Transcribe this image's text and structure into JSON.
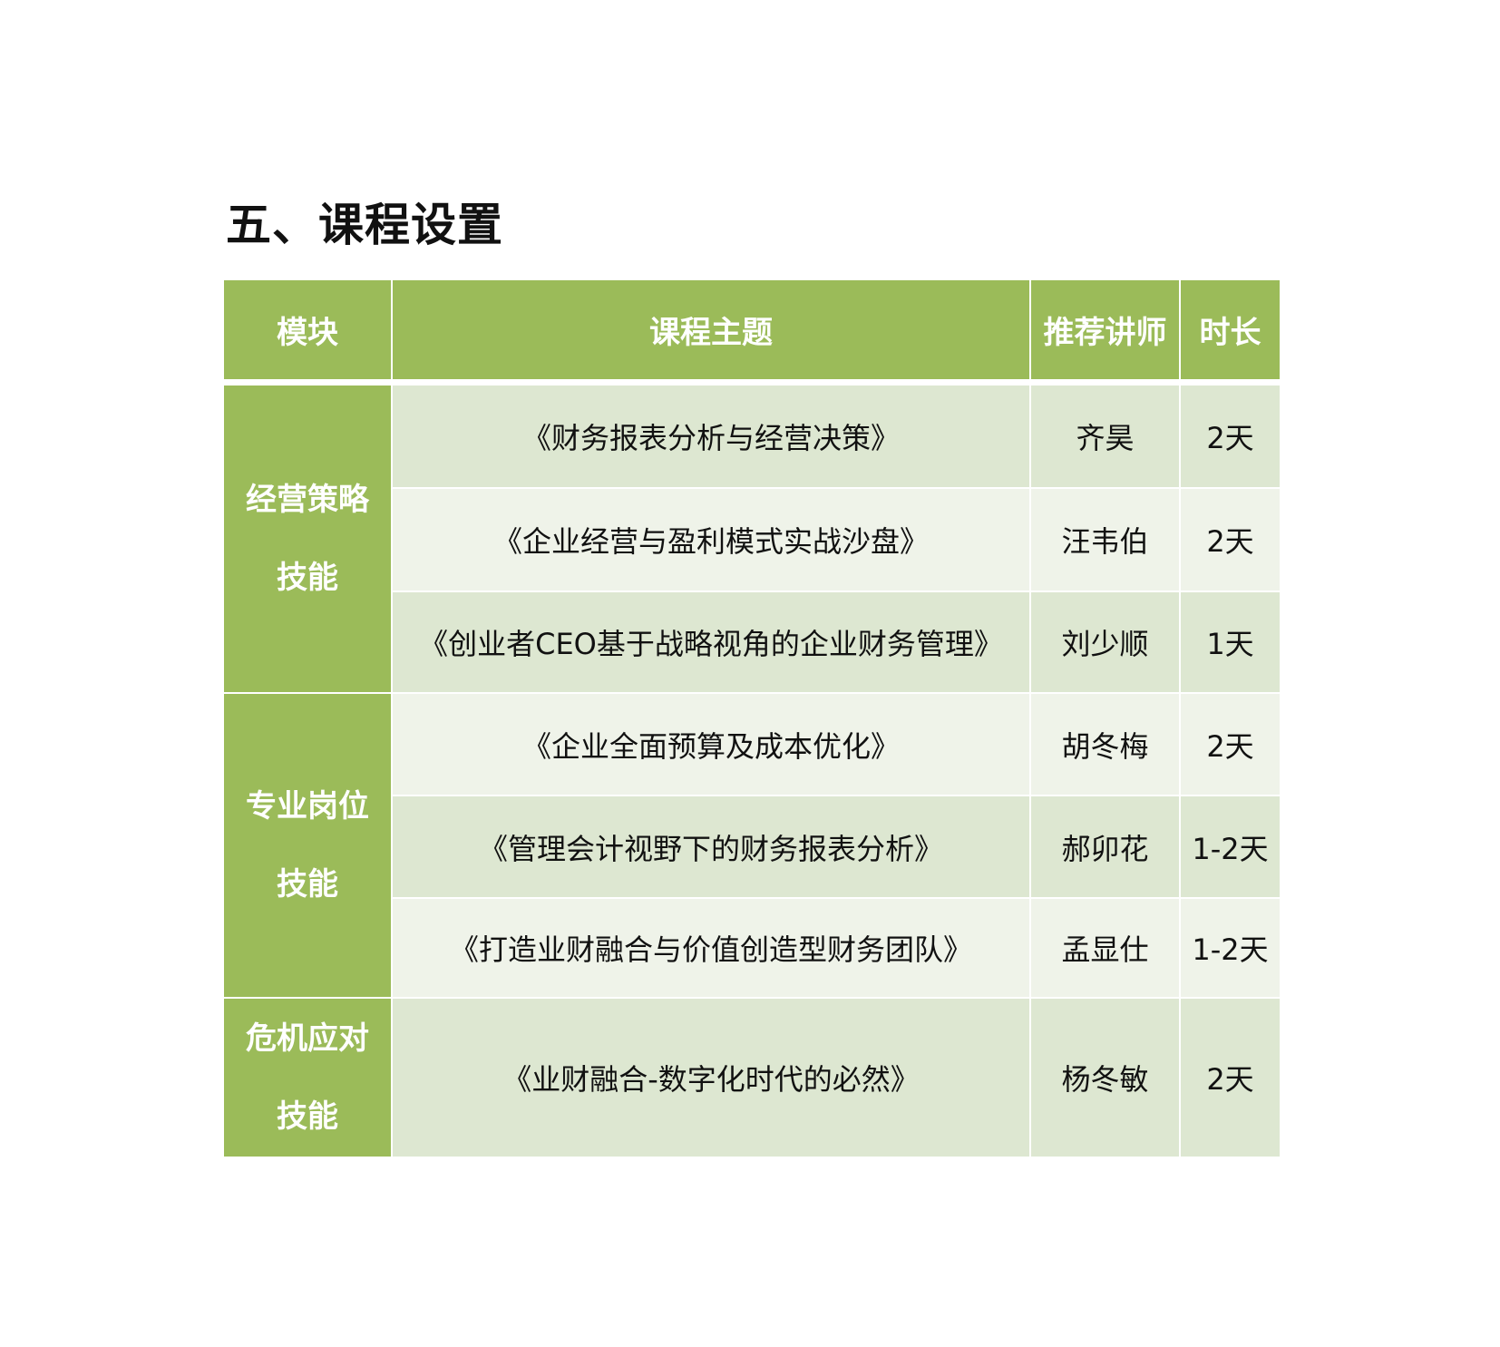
{
  "title": "五、课程设置",
  "colors": {
    "header": "#9BBB59",
    "row_dark": "#DDE7D1",
    "row_light": "#EFF3E9"
  },
  "table": {
    "headers": [
      "模块",
      "课程主题",
      "推荐讲师",
      "时长"
    ],
    "modules": [
      {
        "line1": "经营策略",
        "line2": "技能"
      },
      {
        "line1": "专业岗位",
        "line2": "技能"
      },
      {
        "line1": "危机应对",
        "line2": "技能"
      }
    ],
    "rows": [
      {
        "course": "《财务报表分析与经营决策》",
        "teacher": "齐昊",
        "duration": "2天"
      },
      {
        "course": "《企业经营与盈利模式实战沙盘》",
        "teacher": "汪韦伯",
        "duration": "2天"
      },
      {
        "course": "《创业者CEO基于战略视角的企业财务管理》",
        "teacher": "刘少顺",
        "duration": "1天"
      },
      {
        "course": "《企业全面预算及成本优化》",
        "teacher": "胡冬梅",
        "duration": "2天"
      },
      {
        "course": "《管理会计视野下的财务报表分析》",
        "teacher": "郝卯花",
        "duration": "1-2天"
      },
      {
        "course": "《打造业财融合与价值创造型财务团队》",
        "teacher": "孟显仕",
        "duration": "1-2天"
      },
      {
        "course": "《业财融合-数字化时代的必然》",
        "teacher": "杨冬敏",
        "duration": "2天"
      }
    ]
  }
}
